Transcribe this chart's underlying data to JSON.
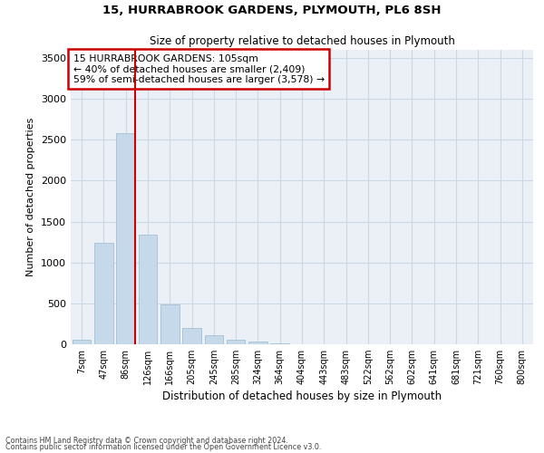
{
  "title1": "15, HURRABROOK GARDENS, PLYMOUTH, PL6 8SH",
  "title2": "Size of property relative to detached houses in Plymouth",
  "xlabel": "Distribution of detached houses by size in Plymouth",
  "ylabel": "Number of detached properties",
  "categories": [
    "7sqm",
    "47sqm",
    "86sqm",
    "126sqm",
    "166sqm",
    "205sqm",
    "245sqm",
    "285sqm",
    "324sqm",
    "364sqm",
    "404sqm",
    "443sqm",
    "483sqm",
    "522sqm",
    "562sqm",
    "602sqm",
    "641sqm",
    "681sqm",
    "721sqm",
    "760sqm",
    "800sqm"
  ],
  "values": [
    55,
    1240,
    2580,
    1340,
    490,
    195,
    110,
    55,
    30,
    15,
    5,
    2,
    0,
    0,
    0,
    0,
    0,
    0,
    0,
    0,
    0
  ],
  "bar_color": "#c6d9ea",
  "bar_edge_color": "#9ab8d0",
  "grid_color": "#ccd8e4",
  "bg_color": "#eaf0f6",
  "vline_color": "#cc0000",
  "vline_bar_index": 2,
  "annotation_text": "15 HURRABROOK GARDENS: 105sqm\n← 40% of detached houses are smaller (2,409)\n59% of semi-detached houses are larger (3,578) →",
  "annotation_box_color": "#cc0000",
  "ylim": [
    0,
    3600
  ],
  "yticks": [
    0,
    500,
    1000,
    1500,
    2000,
    2500,
    3000,
    3500
  ],
  "footer1": "Contains HM Land Registry data © Crown copyright and database right 2024.",
  "footer2": "Contains public sector information licensed under the Open Government Licence v3.0."
}
